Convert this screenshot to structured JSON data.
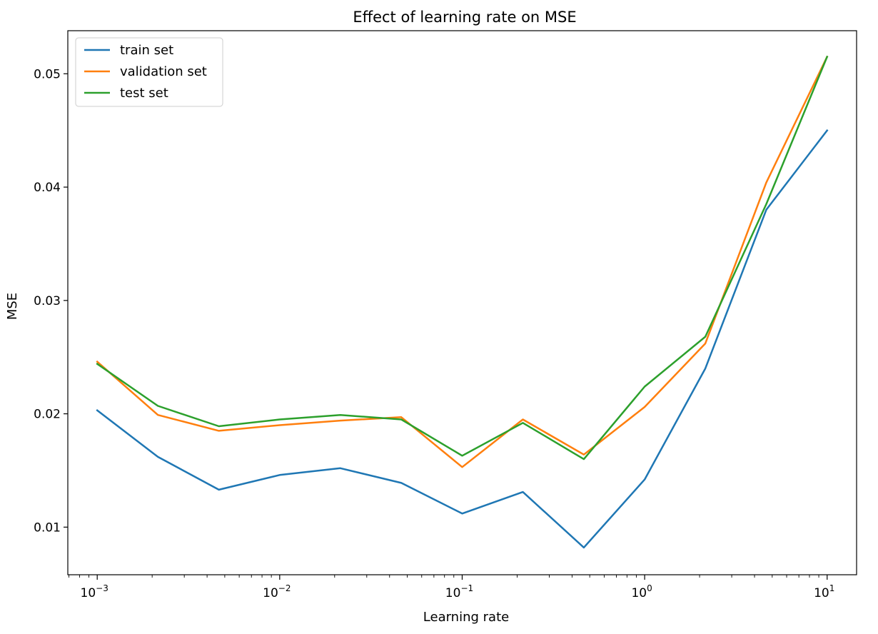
{
  "chart_data": {
    "type": "line",
    "title": "Effect of learning rate on MSE",
    "xlabel": "Learning rate",
    "ylabel": "MSE",
    "xscale": "log",
    "xlim": [
      0.00069,
      14.5
    ],
    "ylim": [
      0.0058,
      0.0538
    ],
    "grid": false,
    "legend_position": "top-left",
    "x": [
      0.001,
      0.00215,
      0.00464,
      0.01,
      0.0215,
      0.0464,
      0.1,
      0.215,
      0.464,
      1,
      2.15,
      4.64,
      10
    ],
    "x_ticks": [
      {
        "value": 0.001,
        "base": "10",
        "exp": "−3"
      },
      {
        "value": 0.01,
        "base": "10",
        "exp": "−2"
      },
      {
        "value": 0.1,
        "base": "10",
        "exp": "−1"
      },
      {
        "value": 1,
        "base": "10",
        "exp": "0"
      },
      {
        "value": 10,
        "base": "10",
        "exp": "1"
      }
    ],
    "y_ticks": [
      {
        "value": 0.01,
        "label": "0.01"
      },
      {
        "value": 0.02,
        "label": "0.02"
      },
      {
        "value": 0.03,
        "label": "0.03"
      },
      {
        "value": 0.04,
        "label": "0.04"
      },
      {
        "value": 0.05,
        "label": "0.05"
      }
    ],
    "series": [
      {
        "name": "train set",
        "color": "#1f77b4",
        "values": [
          0.0203,
          0.0162,
          0.0133,
          0.0146,
          0.0152,
          0.0139,
          0.0112,
          0.0131,
          0.0082,
          0.0142,
          0.024,
          0.038,
          0.045
        ]
      },
      {
        "name": "validation set",
        "color": "#ff7f0e",
        "values": [
          0.0246,
          0.0199,
          0.0185,
          0.019,
          0.0194,
          0.0197,
          0.0153,
          0.0195,
          0.0164,
          0.0206,
          0.0262,
          0.0404,
          0.0515
        ]
      },
      {
        "name": "test set",
        "color": "#2ca02c",
        "values": [
          0.0244,
          0.0207,
          0.0189,
          0.0195,
          0.0199,
          0.0195,
          0.0163,
          0.0192,
          0.016,
          0.0224,
          0.0268,
          0.0385,
          0.0515
        ]
      }
    ]
  }
}
